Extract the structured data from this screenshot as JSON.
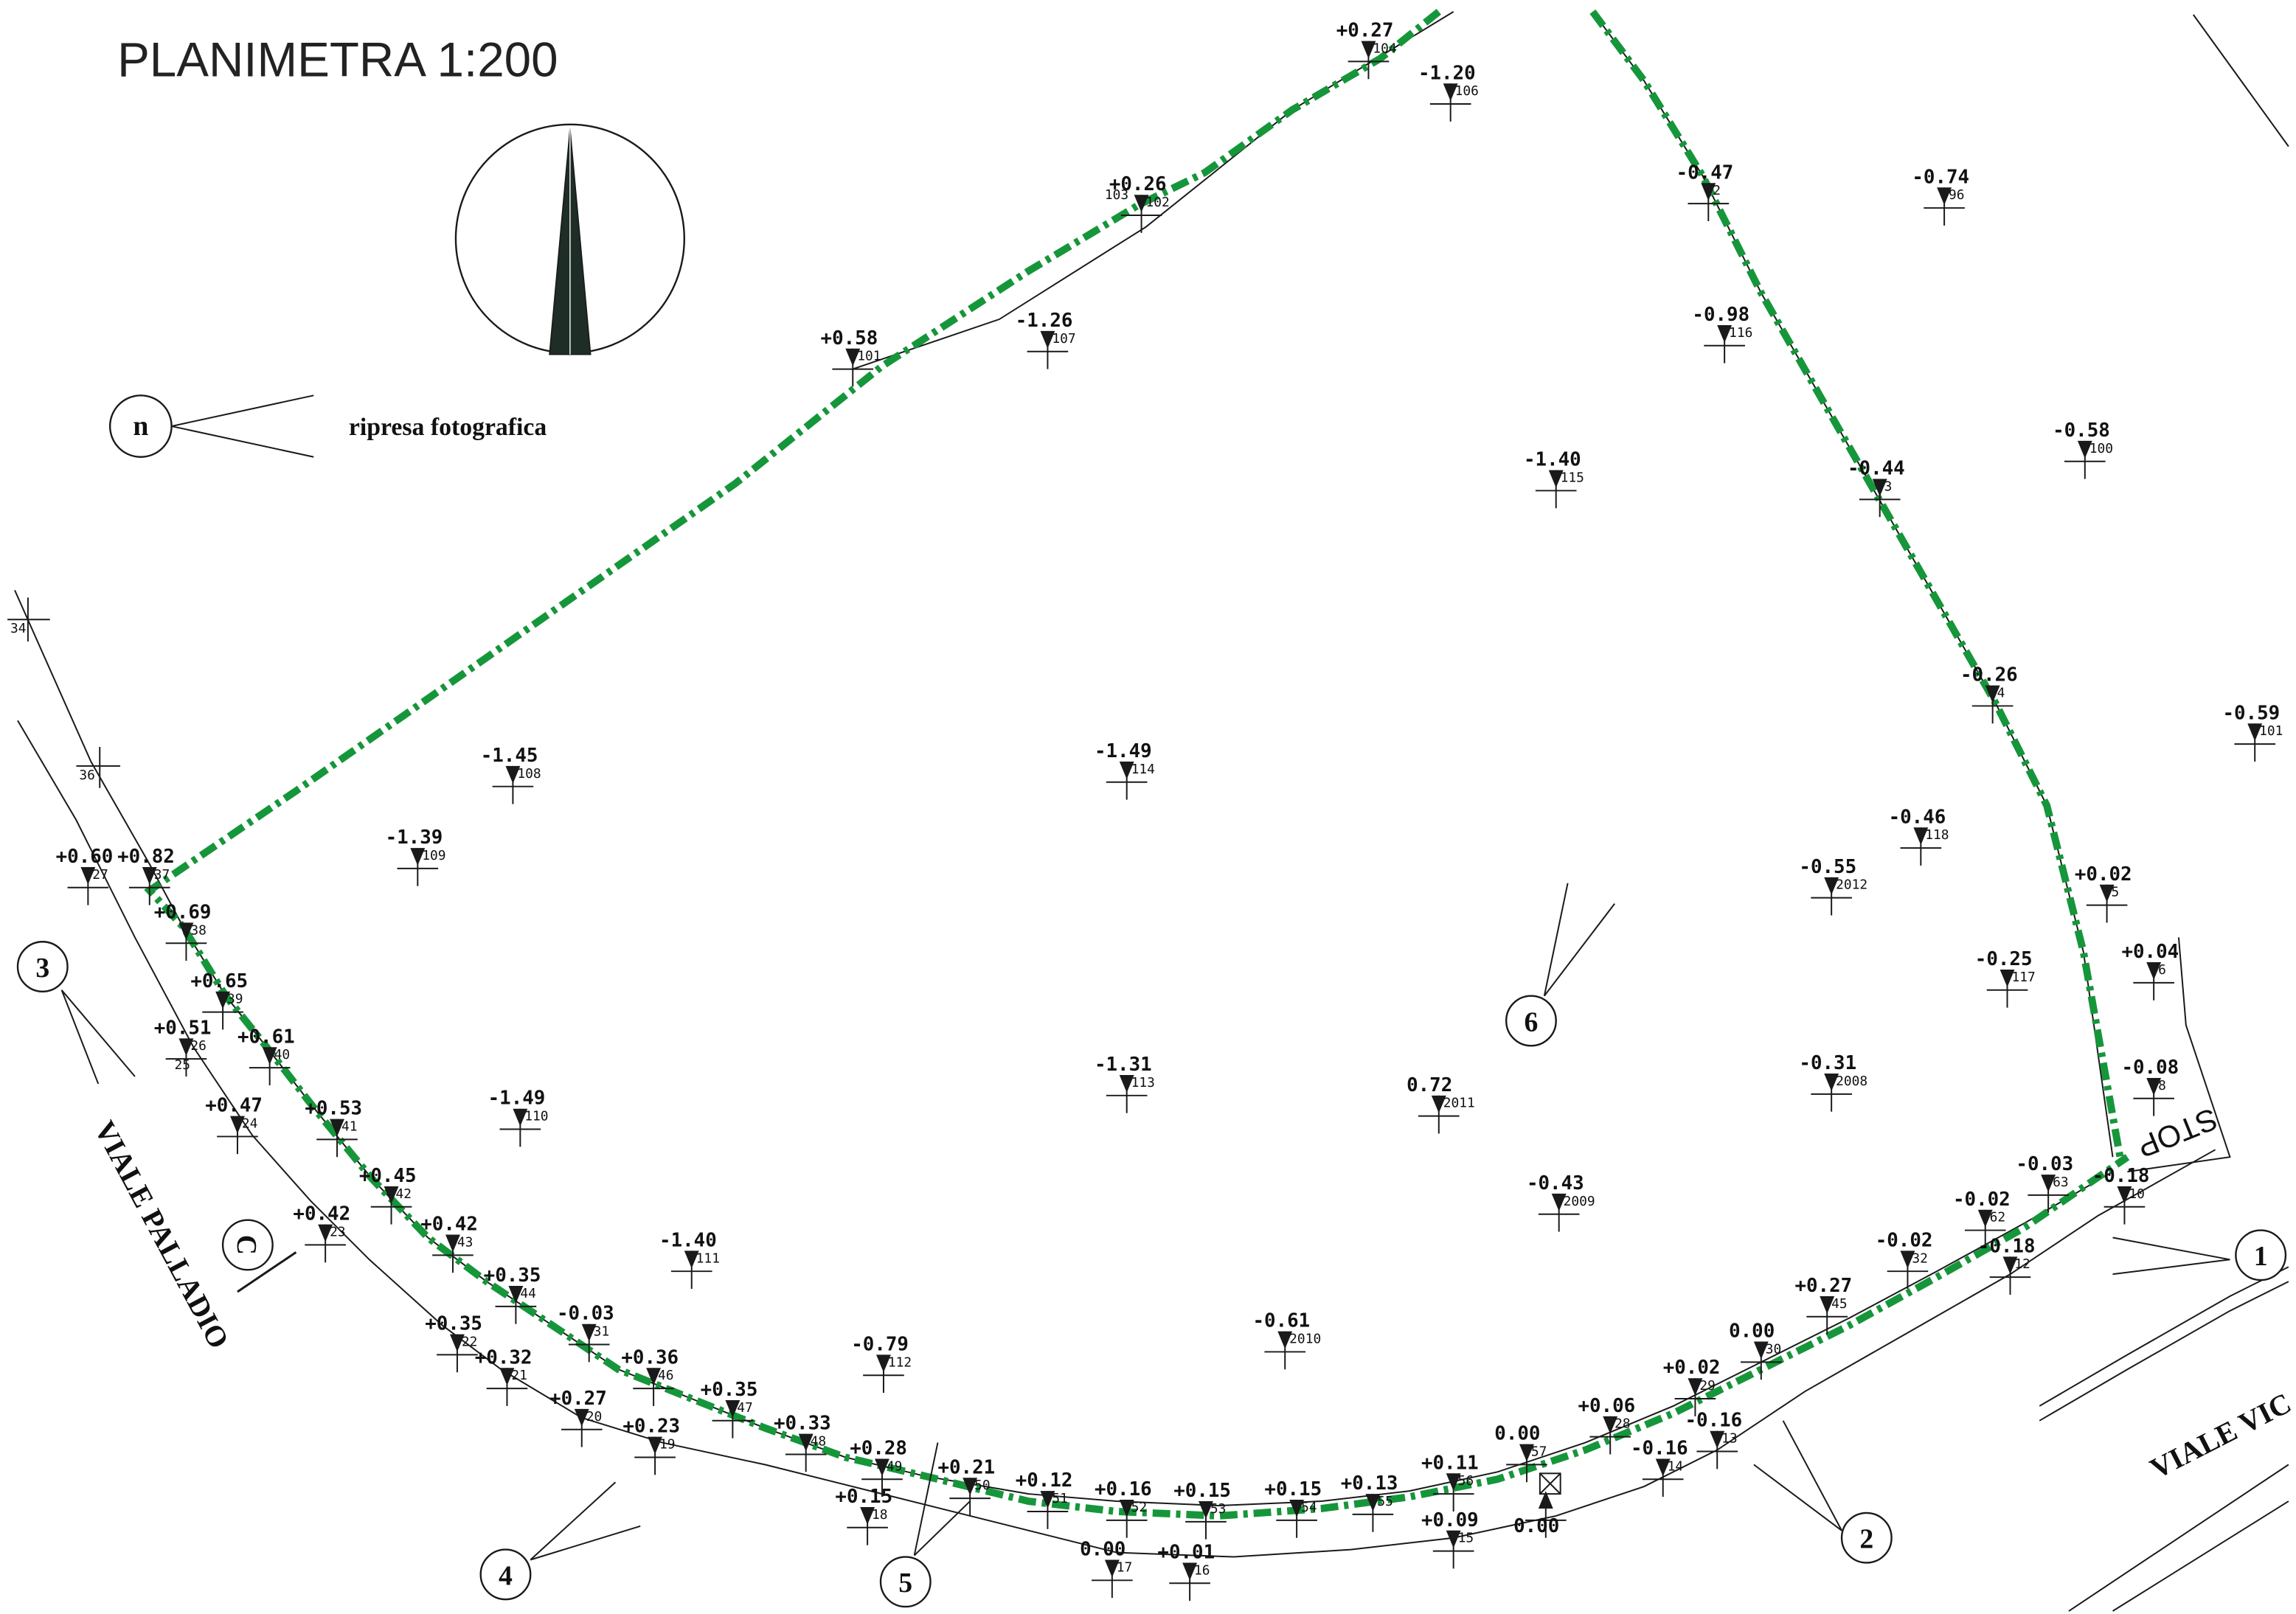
{
  "title": "PLANIMETRA   1:200",
  "legend": {
    "label": "ripresa fotografica",
    "symbol": "n"
  },
  "colors": {
    "boundary": "#16963a",
    "ink": "#1a1a1a"
  },
  "streets": {
    "palladio": "VIALE PALLADIO",
    "vic": "VIALE VIC"
  },
  "stop_label": "STOP",
  "section_mark": "C",
  "photo_points": [
    {
      "n": "1"
    },
    {
      "n": "2"
    },
    {
      "n": "3"
    },
    {
      "n": "4"
    },
    {
      "n": "5"
    },
    {
      "n": "6"
    }
  ],
  "spot_heights": [
    {
      "elev": "+0.27",
      "id": "104"
    },
    {
      "elev": "-1.20",
      "id": "106"
    },
    {
      "elev": "+0.26",
      "id": "102"
    },
    {
      "elev": "+0.58",
      "id": "101"
    },
    {
      "elev": "-1.26",
      "id": "107"
    },
    {
      "elev": "-0.47",
      "id": "2"
    },
    {
      "elev": "-0.74",
      "id": "96"
    },
    {
      "elev": "-0.98",
      "id": "116"
    },
    {
      "elev": "-1.40",
      "id": "115"
    },
    {
      "elev": "-0.44",
      "id": "3"
    },
    {
      "elev": "-0.58",
      "id": "100"
    },
    {
      "elev": "-0.26",
      "id": "4"
    },
    {
      "elev": "-0.59",
      "id": "101"
    },
    {
      "elev": "-1.45",
      "id": "108"
    },
    {
      "elev": "-1.49",
      "id": "114"
    },
    {
      "elev": "-1.39",
      "id": "109"
    },
    {
      "elev": "+0.82",
      "id": "37"
    },
    {
      "elev": "+0.60",
      "id": "27"
    },
    {
      "elev": "-0.46",
      "id": "118"
    },
    {
      "elev": "-0.55",
      "id": "2012"
    },
    {
      "elev": "+0.02",
      "id": "5"
    },
    {
      "elev": "+0.69",
      "id": "38"
    },
    {
      "elev": "+0.04",
      "id": "6"
    },
    {
      "elev": "-0.25",
      "id": "117"
    },
    {
      "elev": "+0.65",
      "id": "39"
    },
    {
      "elev": "+0.51",
      "id": "26"
    },
    {
      "elev": "+0.61",
      "id": "40"
    },
    {
      "elev": "-1.31",
      "id": "113"
    },
    {
      "elev": "0.72",
      "id": "2011"
    },
    {
      "elev": "-0.31",
      "id": "2008"
    },
    {
      "elev": "-0.08",
      "id": "8"
    },
    {
      "elev": "+0.47",
      "id": "24"
    },
    {
      "elev": "+0.53",
      "id": "41"
    },
    {
      "elev": "-1.49",
      "id": "110"
    },
    {
      "elev": "+0.45",
      "id": "42"
    },
    {
      "elev": "-0.03",
      "id": "63"
    },
    {
      "elev": "-0.18",
      "id": "10"
    },
    {
      "elev": "+0.42",
      "id": "23"
    },
    {
      "elev": "-0.43",
      "id": "2009"
    },
    {
      "elev": "+0.42",
      "id": "43"
    },
    {
      "elev": "-0.02",
      "id": "62"
    },
    {
      "elev": "-1.40",
      "id": "111"
    },
    {
      "elev": "-0.18",
      "id": "12"
    },
    {
      "elev": "-0.02",
      "id": "32"
    },
    {
      "elev": "+0.35",
      "id": "44"
    },
    {
      "elev": "-0.03",
      "id": "31"
    },
    {
      "elev": "+0.27",
      "id": "45"
    },
    {
      "elev": "+0.35",
      "id": "22"
    },
    {
      "elev": "0.00",
      "id": "30"
    },
    {
      "elev": "-0.61",
      "id": "2010"
    },
    {
      "elev": "+0.32",
      "id": "21"
    },
    {
      "elev": "+0.36",
      "id": "46"
    },
    {
      "elev": "-0.79",
      "id": "112"
    },
    {
      "elev": "+0.35",
      "id": "47"
    },
    {
      "elev": "+0.02",
      "id": "29"
    },
    {
      "elev": "+0.27",
      "id": "20"
    },
    {
      "elev": "+0.06",
      "id": "28"
    },
    {
      "elev": "-0.16",
      "id": "13"
    },
    {
      "elev": "+0.33",
      "id": "48"
    },
    {
      "elev": "+0.23",
      "id": "19"
    },
    {
      "elev": "0.00",
      "id": "57"
    },
    {
      "elev": "+0.28",
      "id": "49"
    },
    {
      "elev": "+0.21",
      "id": "50"
    },
    {
      "elev": "-0.16",
      "id": "14"
    },
    {
      "elev": "+0.11",
      "id": "56"
    },
    {
      "elev": "+0.12",
      "id": "51"
    },
    {
      "elev": "+0.16",
      "id": "52"
    },
    {
      "elev": "+0.15",
      "id": "53"
    },
    {
      "elev": "+0.15",
      "id": "54"
    },
    {
      "elev": "+0.13",
      "id": "55"
    },
    {
      "elev": "+0.15",
      "id": "18"
    },
    {
      "elev": "+0.09",
      "id": "15"
    },
    {
      "elev": "0.00",
      "id": "17"
    },
    {
      "elev": "+0.01",
      "id": "16"
    },
    {
      "elev": "0.00",
      "id": ""
    }
  ],
  "edge_ids": [
    {
      "id": "34"
    },
    {
      "id": "36"
    },
    {
      "id": "25"
    },
    {
      "id": "103"
    }
  ]
}
